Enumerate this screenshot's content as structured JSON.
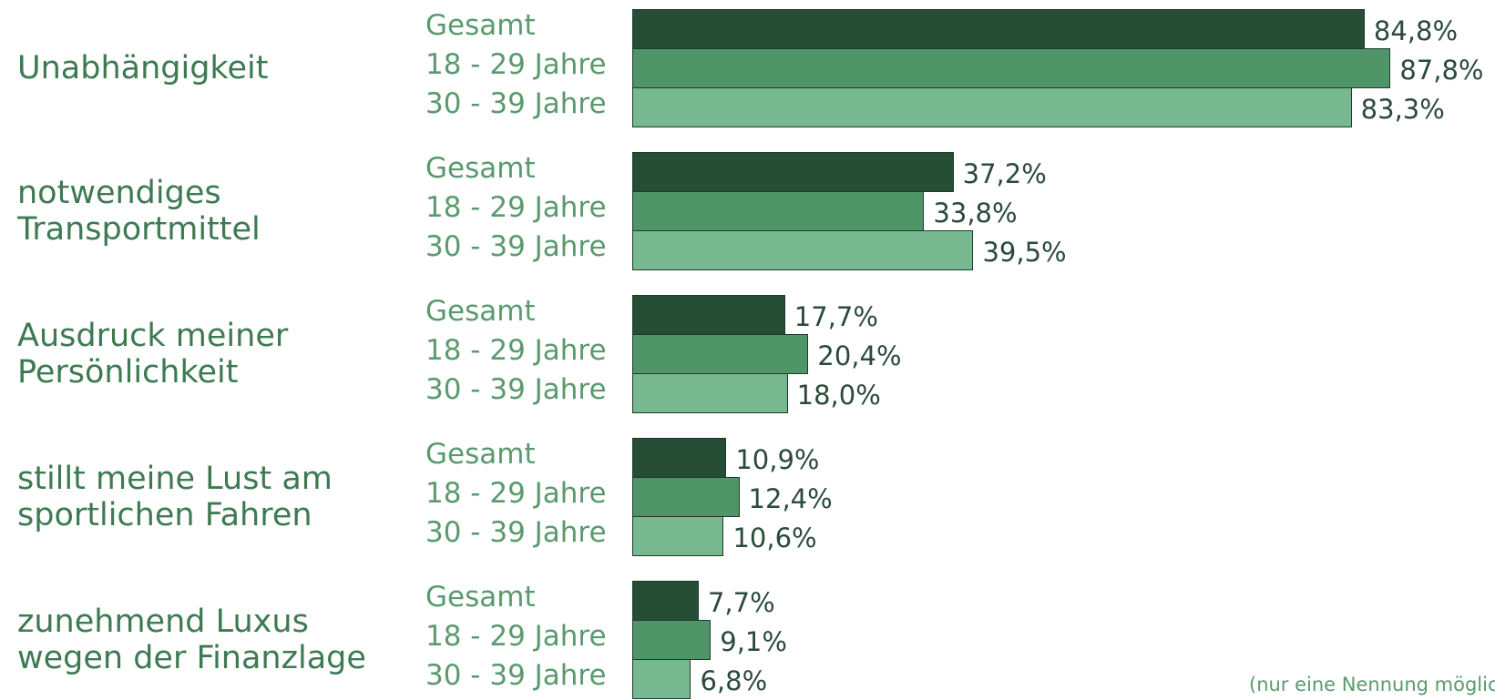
{
  "chart_data": {
    "type": "bar",
    "orientation": "horizontal",
    "categories": [
      "Unabhängigkeit",
      "notwendiges\nTransportmittel",
      "Ausdruck meiner\nPersönlichkeit",
      "stillt meine Lust am\nsportlichen Fahren",
      "zunehmend Luxus\nwegen der Finanzlage"
    ],
    "series": [
      {
        "name": "Gesamt",
        "color": "#264d36",
        "values": [
          84.8,
          37.2,
          17.7,
          10.9,
          7.7
        ],
        "value_labels": [
          "84,8%",
          "37,2%",
          "17,7%",
          "10,9%",
          "7,7%"
        ]
      },
      {
        "name": "18 - 29 Jahre",
        "color": "#4f9568",
        "values": [
          87.8,
          33.8,
          20.4,
          12.4,
          9.1
        ],
        "value_labels": [
          "87,8%",
          "33,8%",
          "20,4%",
          "12,4%",
          "9,1%"
        ]
      },
      {
        "name": "30 - 39 Jahre",
        "color": "#77b890",
        "values": [
          83.3,
          39.5,
          18.0,
          10.6,
          6.8
        ],
        "value_labels": [
          "83,3%",
          "39,5%",
          "18,0%",
          "10,6%",
          "6,8%"
        ]
      }
    ],
    "note": "(nur eine Nennung möglich)"
  }
}
